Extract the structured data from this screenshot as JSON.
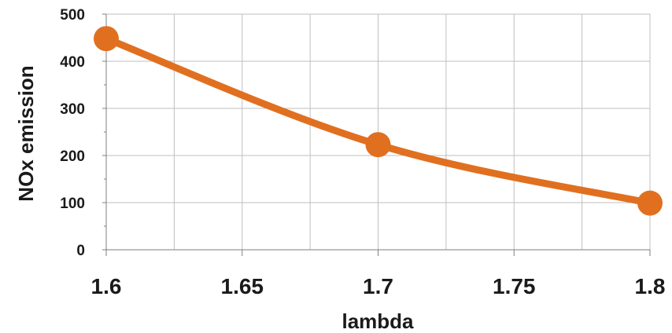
{
  "chart_data": {
    "type": "line",
    "title": "",
    "xlabel": "lambda",
    "ylabel": "NOx emission",
    "x_ticks": [
      "1.6",
      "1.65",
      "1.7",
      "1.75",
      "1.8"
    ],
    "y_ticks": [
      "0",
      "100",
      "200",
      "300",
      "400",
      "500"
    ],
    "xlim": [
      1.6,
      1.8
    ],
    "ylim": [
      0,
      500
    ],
    "grid": true,
    "legend": "none",
    "series": [
      {
        "color": "#E07020",
        "x": [
          1.6,
          1.7,
          1.8
        ],
        "y": [
          448,
          223,
          99
        ]
      }
    ]
  }
}
